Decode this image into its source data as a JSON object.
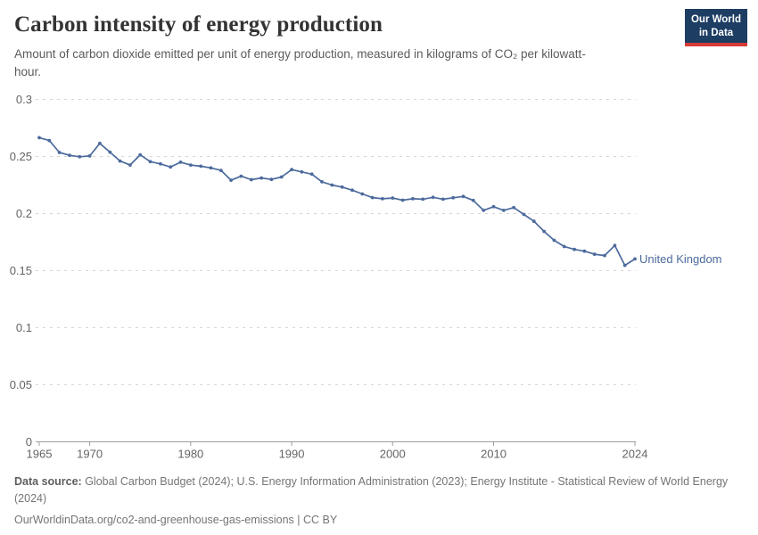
{
  "header": {
    "title": "Carbon intensity of energy production",
    "subtitle": "Amount of carbon dioxide emitted per unit of energy production, measured in kilograms of CO₂ per kilowatt-hour.",
    "logo": {
      "line1": "Our World",
      "line2": "in Data",
      "bg_color": "#1d3d63",
      "accent_color": "#d73a36"
    }
  },
  "chart_data": {
    "type": "line",
    "title": "Carbon intensity of energy production",
    "entity_label": "United Kingdom",
    "unit_shown_in_subtitle": "kilograms of CO₂ per kilowatt-hour",
    "x": [
      1965,
      1966,
      1967,
      1968,
      1969,
      1970,
      1971,
      1972,
      1973,
      1974,
      1975,
      1976,
      1977,
      1978,
      1979,
      1980,
      1981,
      1982,
      1983,
      1984,
      1985,
      1986,
      1987,
      1988,
      1989,
      1990,
      1991,
      1992,
      1993,
      1994,
      1995,
      1996,
      1997,
      1998,
      1999,
      2000,
      2001,
      2002,
      2003,
      2004,
      2005,
      2006,
      2007,
      2008,
      2009,
      2010,
      2011,
      2012,
      2013,
      2014,
      2015,
      2016,
      2017,
      2018,
      2019,
      2020,
      2021,
      2022,
      2023,
      2024
    ],
    "series": [
      {
        "name": "United Kingdom",
        "color": "#4C6A9C",
        "values": [
          0.2665,
          0.264,
          0.2535,
          0.251,
          0.2498,
          0.2505,
          0.2615,
          0.2538,
          0.246,
          0.2425,
          0.2515,
          0.2455,
          0.2435,
          0.2408,
          0.245,
          0.2425,
          0.2415,
          0.24,
          0.2378,
          0.2292,
          0.2327,
          0.2297,
          0.2312,
          0.2299,
          0.232,
          0.2385,
          0.2365,
          0.2345,
          0.2278,
          0.225,
          0.2232,
          0.2205,
          0.2172,
          0.214,
          0.213,
          0.2136,
          0.2117,
          0.213,
          0.2126,
          0.2142,
          0.2126,
          0.2138,
          0.215,
          0.2115,
          0.2028,
          0.206,
          0.2028,
          0.2052,
          0.1992,
          0.1932,
          0.1844,
          0.1766,
          0.1711,
          0.1686,
          0.167,
          0.1644,
          0.1632,
          0.172,
          0.1546,
          0.1602
        ]
      }
    ],
    "xlim": [
      1965,
      2024
    ],
    "ylim": [
      0,
      0.3
    ],
    "x_tick_labels": [
      "1965",
      "1970",
      "1980",
      "1990",
      "2000",
      "2010",
      "2024"
    ],
    "x_tick_years": [
      1965,
      1970,
      1980,
      1990,
      2000,
      2010,
      2024
    ],
    "y_ticks": [
      0,
      0.05,
      0.1,
      0.15,
      0.2,
      0.25,
      0.3
    ],
    "y_tick_labels": [
      "0",
      "0.05",
      "0.1",
      "0.15",
      "0.2",
      "0.25",
      "0.3"
    ],
    "grid": "horizontal dashed",
    "legend_position": "end-of-line label",
    "colors": {
      "line": "#4C6A9C",
      "gridline": "#d6d6d6",
      "axis": "#9e9e9e",
      "tick_label": "#646464"
    }
  },
  "footer": {
    "source_label": "Data source:",
    "source_text": " Global Carbon Budget (2024); U.S. Energy Information Administration (2023); Energy Institute - Statistical Review of World Energy (2024)",
    "link_text": "OurWorldinData.org/co2-and-greenhouse-gas-emissions | CC BY"
  }
}
